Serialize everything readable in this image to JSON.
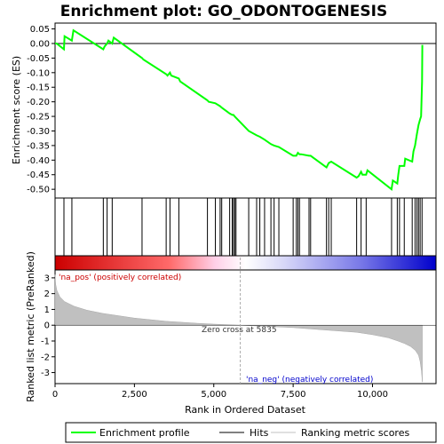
{
  "chart_data": {
    "type": "line",
    "title": "Enrichment plot: GO_ODONTOGENESIS",
    "xlabel": "Rank in Ordered Dataset",
    "ylabel_top": "Enrichment score (ES)",
    "ylabel_bottom": "Ranked list metric (PreRanked)",
    "x_range": [
      0,
      12000
    ],
    "x_ticks": [
      0,
      2500,
      5000,
      7500,
      10000
    ],
    "x_tick_labels": [
      "0",
      "2,500",
      "5,000",
      "7,500",
      "10,000"
    ],
    "es_ylim": [
      -0.53,
      0.07
    ],
    "es_ticks": [
      0.05,
      0.0,
      -0.05,
      -0.1,
      -0.15,
      -0.2,
      -0.25,
      -0.3,
      -0.35,
      -0.4,
      -0.45,
      -0.5
    ],
    "es_tick_labels": [
      "0.05",
      "0.00",
      "-0.05",
      "-0.10",
      "-0.15",
      "-0.20",
      "-0.25",
      "-0.30",
      "-0.35",
      "-0.40",
      "-0.45",
      "-0.50"
    ],
    "metric_ylim": [
      -3.7,
      3.5
    ],
    "metric_ticks": [
      3,
      2,
      1,
      0,
      -1,
      -2,
      -3
    ],
    "metric_tick_labels": [
      "3",
      "2",
      "1",
      "0",
      "-1",
      "-2",
      "-3"
    ],
    "enrichment_profile": {
      "name": "Enrichment profile",
      "color": "#00ff00",
      "x": [
        0,
        50,
        280,
        300,
        530,
        580,
        1520,
        1560,
        1640,
        1680,
        1800,
        1850,
        2740,
        2780,
        3500,
        3540,
        3620,
        3660,
        3900,
        3940,
        4800,
        4840,
        5050,
        5200,
        5250,
        5500,
        5580,
        5620,
        5660,
        5700,
        6100,
        6350,
        6450,
        6600,
        6800,
        6900,
        7050,
        7500,
        7600,
        7650,
        7700,
        7750,
        8000,
        8050,
        8550,
        8620,
        8700,
        9500,
        9560,
        9640,
        9680,
        9800,
        9840,
        10600,
        10640,
        10780,
        10810,
        10850,
        11000,
        11030,
        11250,
        11290,
        11340,
        11400,
        11450,
        11500,
        11530,
        11560,
        11570
      ],
      "y": [
        0.0,
        0.0,
        -0.02,
        0.025,
        0.01,
        0.045,
        -0.02,
        -0.01,
        0.0,
        0.01,
        0.0,
        0.02,
        -0.05,
        -0.055,
        -0.105,
        -0.11,
        -0.1,
        -0.11,
        -0.12,
        -0.13,
        -0.195,
        -0.2,
        -0.205,
        -0.215,
        -0.22,
        -0.24,
        -0.245,
        -0.245,
        -0.25,
        -0.255,
        -0.3,
        -0.315,
        -0.32,
        -0.33,
        -0.345,
        -0.35,
        -0.355,
        -0.385,
        -0.385,
        -0.375,
        -0.38,
        -0.38,
        -0.385,
        -0.385,
        -0.425,
        -0.41,
        -0.405,
        -0.46,
        -0.455,
        -0.44,
        -0.45,
        -0.45,
        -0.435,
        -0.5,
        -0.47,
        -0.48,
        -0.45,
        -0.42,
        -0.42,
        -0.395,
        -0.405,
        -0.37,
        -0.35,
        -0.31,
        -0.28,
        -0.26,
        -0.25,
        -0.13,
        -0.005
      ]
    },
    "hits": {
      "name": "Hits",
      "color": "#000000",
      "x": [
        280,
        530,
        1520,
        1640,
        1800,
        2740,
        3500,
        3620,
        3900,
        4800,
        5050,
        5200,
        5250,
        5500,
        5580,
        5620,
        5660,
        5700,
        6100,
        6350,
        6450,
        6600,
        6800,
        6900,
        7050,
        7500,
        7600,
        7650,
        7700,
        8000,
        8050,
        8550,
        8620,
        8700,
        9500,
        9640,
        9800,
        10600,
        10780,
        10850,
        11000,
        11250,
        11340,
        11400,
        11450,
        11500,
        11560
      ]
    },
    "ranking_metric": {
      "name": "Ranking metric scores",
      "color": "#c0c0c0",
      "x": [
        0,
        20,
        60,
        150,
        300,
        600,
        1000,
        1500,
        2500,
        3500,
        4500,
        5000,
        5835,
        6500,
        7500,
        8500,
        9500,
        10000,
        10500,
        10800,
        11000,
        11200,
        11350,
        11450,
        11500,
        11540,
        11570
      ],
      "y": [
        3.2,
        2.6,
        2.2,
        1.8,
        1.5,
        1.2,
        0.95,
        0.75,
        0.45,
        0.25,
        0.12,
        0.07,
        0.0,
        -0.06,
        -0.15,
        -0.3,
        -0.45,
        -0.6,
        -0.8,
        -1.0,
        -1.15,
        -1.35,
        -1.6,
        -1.9,
        -2.3,
        -2.9,
        -3.6
      ]
    },
    "zero_cross": 5835,
    "annotations": {
      "pos_label": "'na_pos' (positively correlated)",
      "neg_label": "'na_neg' (negatively correlated)",
      "zero_label": "Zero cross at 5835"
    },
    "legend_placement": "bottom",
    "colors": {
      "pos": "#cc0000",
      "neg": "#0000cc",
      "zero_line": "#aaaaaa"
    }
  }
}
